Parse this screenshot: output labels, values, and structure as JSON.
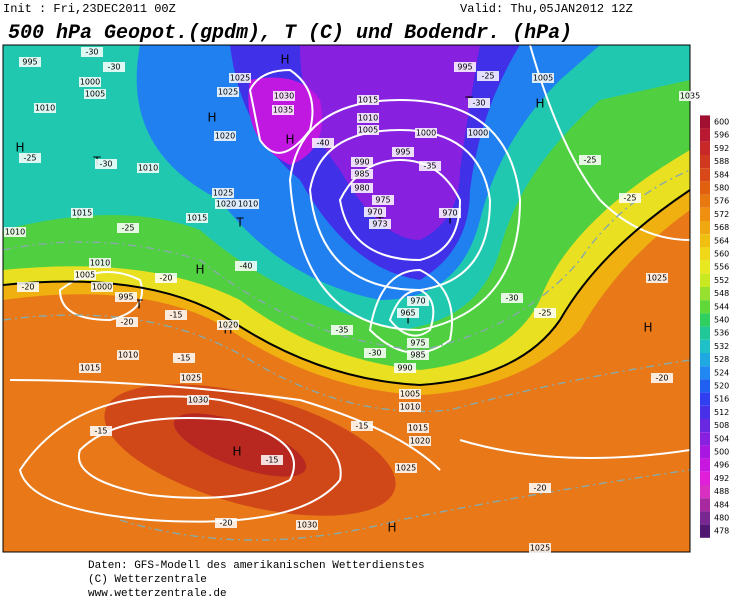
{
  "header": {
    "init": "Init : Fri,23DEC2011 00Z",
    "valid": "Valid: Thu,05JAN2012 12Z",
    "title": "500 hPa Geopot.(gpdm), T (C) und Bodendr. (hPa)"
  },
  "colorbar": {
    "ticks": [
      600,
      596,
      592,
      588,
      584,
      580,
      576,
      572,
      568,
      564,
      560,
      556,
      552,
      548,
      544,
      540,
      536,
      532,
      528,
      524,
      520,
      516,
      512,
      508,
      504,
      500,
      496,
      492,
      488,
      484,
      480,
      478
    ],
    "colors": [
      "#a01030",
      "#b81830",
      "#c82828",
      "#d03820",
      "#d84818",
      "#e06010",
      "#e87810",
      "#f09010",
      "#f0a810",
      "#f0c010",
      "#f0d818",
      "#e8e820",
      "#c8e820",
      "#98e030",
      "#60d838",
      "#30d060",
      "#20c898",
      "#20c0c8",
      "#20a8e0",
      "#2088f0",
      "#2060f0",
      "#3040f0",
      "#4830e8",
      "#6828e0",
      "#8820e0",
      "#a818e0",
      "#c818e0",
      "#e020d8",
      "#d830c0",
      "#a828a0",
      "#782890",
      "#501870"
    ]
  },
  "map": {
    "labels": [
      "H",
      "H",
      "H",
      "H",
      "H",
      "H",
      "H",
      "H",
      "H",
      "H",
      "T",
      "T",
      "T",
      "T",
      "T",
      "T",
      "T",
      "T",
      "995",
      "1000",
      "1005",
      "1010",
      "1025",
      "1025",
      "1030",
      "1035",
      "1020",
      "1010",
      "1015",
      "1010",
      "1005",
      "1000",
      "1000",
      "995",
      "990",
      "985",
      "980",
      "975",
      "970",
      "973",
      "970",
      "1025",
      "1020",
      "1010",
      "1015",
      "1015",
      "1010",
      "1005",
      "1000",
      "995",
      "1010",
      "1015",
      "1025",
      "1030",
      "1020",
      "970",
      "965",
      "975",
      "985",
      "990",
      "1005",
      "1010",
      "1015",
      "1020",
      "1025",
      "1030",
      "1025",
      "1035",
      "1005",
      "995",
      "1010",
      "1025",
      "-30",
      "-30",
      "-25",
      "-30",
      "-25",
      "-20",
      "-20",
      "-15",
      "-20",
      "-15",
      "-15",
      "-15",
      "-15",
      "-20",
      "-20",
      "-20",
      "-25",
      "-25",
      "-25",
      "-30",
      "-35",
      "-30",
      "-40",
      "-40",
      "-35",
      "-25",
      "-30"
    ]
  },
  "footer": {
    "lines": [
      "Daten: GFS-Modell des amerikanischen Wetterdienstes",
      "(C) Wetterzentrale",
      "www.wetterzentrale.de"
    ]
  }
}
